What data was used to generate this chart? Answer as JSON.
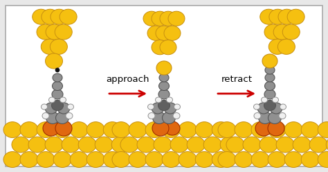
{
  "bg_color": "#e8e8e8",
  "border_color": "#aaaaaa",
  "gold_color": "#f5c010",
  "gold_edge": "#c89010",
  "gray_color": "#909090",
  "gray_edge": "#555555",
  "gray_dark": "#606060",
  "orange_color": "#e06810",
  "orange_edge": "#a03000",
  "white_color": "#f0f0f0",
  "white_edge": "#909090",
  "dot_color": "#111111",
  "arrow_color": "#cc0000",
  "text_approach": "approach",
  "text_retract": "retract",
  "text_fontsize": 9.5
}
